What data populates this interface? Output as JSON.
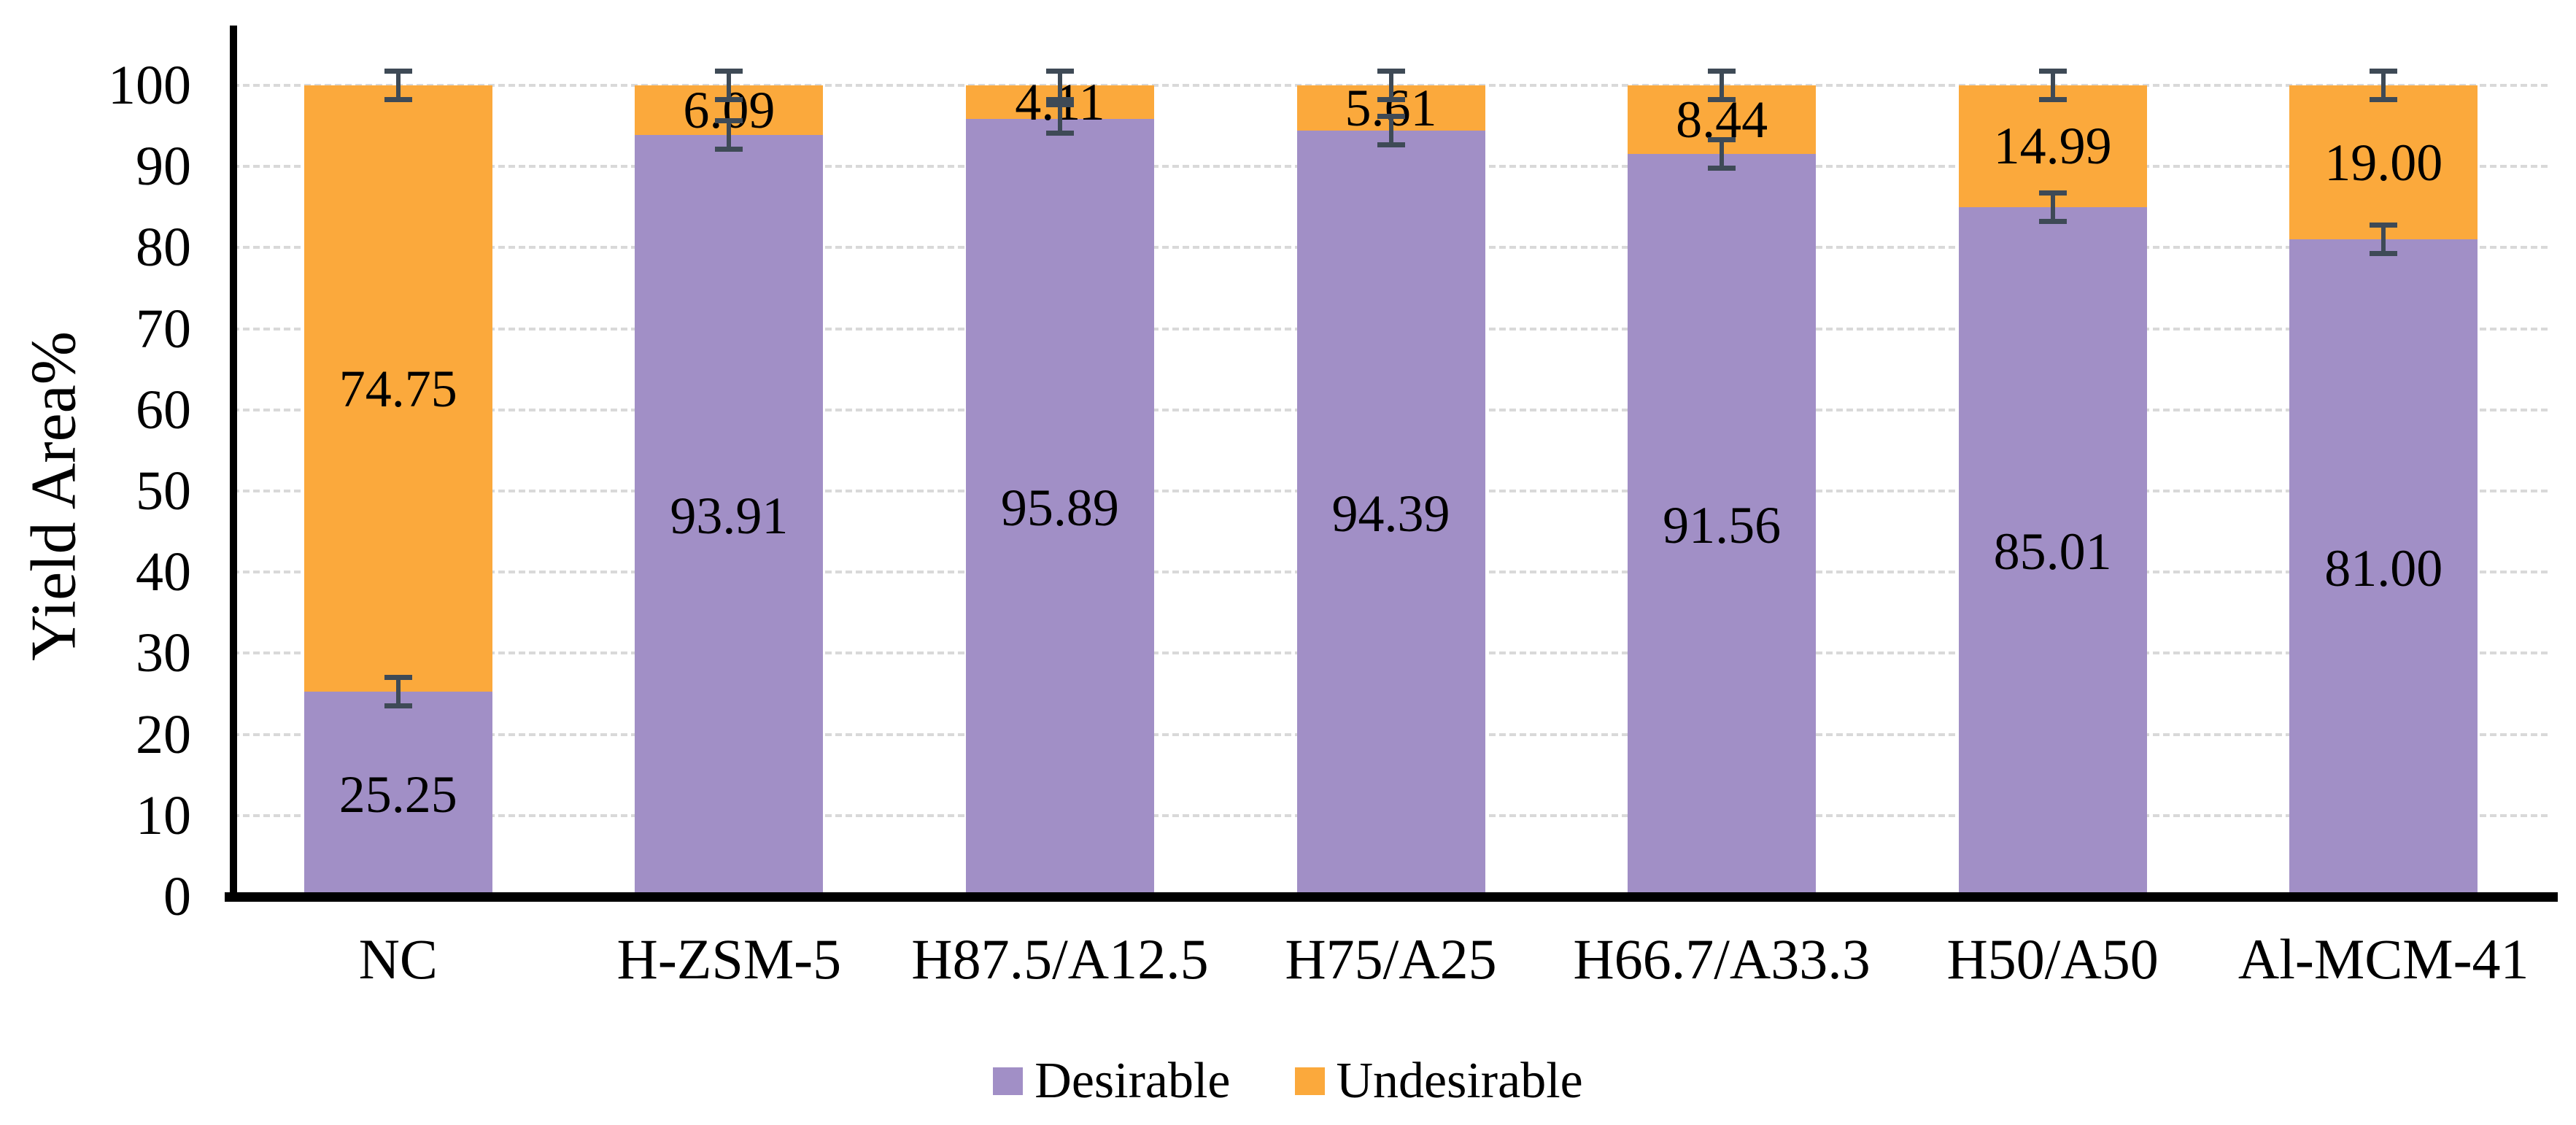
{
  "chart_data": {
    "type": "bar",
    "stacked": true,
    "title": "",
    "ylabel": "Yield Area%",
    "xlabel": "",
    "ylim": [
      0,
      100
    ],
    "yticks": [
      0,
      10,
      20,
      30,
      40,
      50,
      60,
      70,
      80,
      90,
      100
    ],
    "grid": true,
    "gridline_color": "#D9D9D9",
    "axis_color": "#000000",
    "categories": [
      "NC",
      "H-ZSM-5",
      "H87.5/A12.5",
      "H75/A25",
      "H66.7/A33.3",
      "H50/A50",
      "Al-MCM-41"
    ],
    "series": [
      {
        "name": "Desirable",
        "color": "#A18FC6",
        "values": [
          25.25,
          93.91,
          95.89,
          94.39,
          91.56,
          85.01,
          81.0
        ],
        "labels": [
          "25.25",
          "93.91",
          "95.89",
          "94.39",
          "91.56",
          "85.01",
          "81.00"
        ]
      },
      {
        "name": "Undesirable",
        "color": "#FBA93C",
        "values": [
          74.75,
          6.09,
          4.11,
          5.61,
          8.44,
          14.99,
          19.0
        ],
        "labels": [
          "74.75",
          "6.09",
          "4.11",
          "5.61",
          "8.44",
          "14.99",
          "19.00"
        ]
      }
    ],
    "error_bars": {
      "show": true,
      "color": "#3E4A56",
      "positions": "segment-boundaries-and-stack-top"
    },
    "legend": {
      "position": "bottom",
      "items": [
        "Desirable",
        "Undesirable"
      ]
    }
  }
}
